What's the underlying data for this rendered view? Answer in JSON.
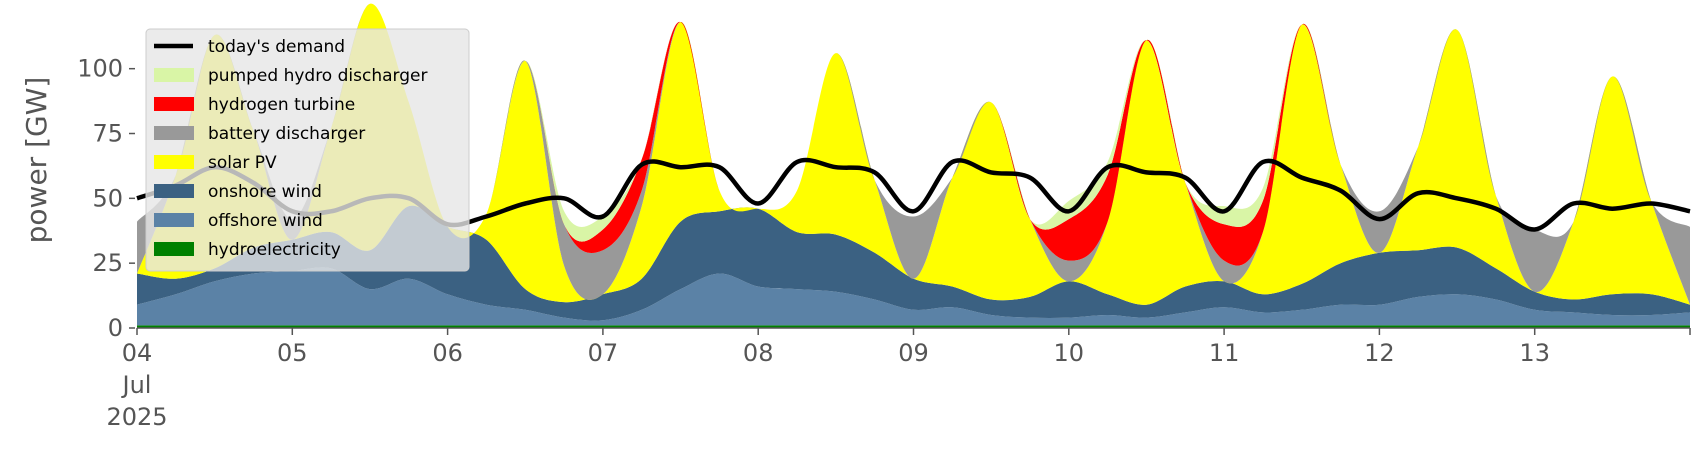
{
  "chart_data": {
    "type": "area",
    "ylabel": "power [GW]",
    "ylim": [
      0,
      118
    ],
    "yticks": [
      0,
      25,
      50,
      75,
      100
    ],
    "xlim": [
      0,
      10
    ],
    "xticks": [
      {
        "pos": 0,
        "label": "04\nJul\n2025"
      },
      {
        "pos": 1,
        "label": "05"
      },
      {
        "pos": 2,
        "label": "06"
      },
      {
        "pos": 3,
        "label": "07"
      },
      {
        "pos": 4,
        "label": "08"
      },
      {
        "pos": 5,
        "label": "09"
      },
      {
        "pos": 6,
        "label": "10"
      },
      {
        "pos": 7,
        "label": "11"
      },
      {
        "pos": 8,
        "label": "12"
      },
      {
        "pos": 9,
        "label": "13"
      },
      {
        "pos": 10,
        "label": ""
      }
    ],
    "grid": false,
    "legend_placement": "upper-left",
    "legend": [
      {
        "name": "today's demand",
        "kind": "line",
        "color": "#000000"
      },
      {
        "name": "pumped hydro discharger",
        "kind": "patch",
        "color": "#d9f5a6"
      },
      {
        "name": "hydrogen turbine",
        "kind": "patch",
        "color": "#ff0000"
      },
      {
        "name": "battery discharger",
        "kind": "patch",
        "color": "#999999"
      },
      {
        "name": "solar PV",
        "kind": "patch",
        "color": "#ffff00"
      },
      {
        "name": "onshore wind",
        "kind": "patch",
        "color": "#3b6182"
      },
      {
        "name": "offshore wind",
        "kind": "patch",
        "color": "#5b82a6"
      },
      {
        "name": "hydroelectricity",
        "kind": "patch",
        "color": "#008000"
      }
    ],
    "x_days": [
      0,
      0.25,
      0.5,
      0.75,
      1,
      1.25,
      1.5,
      1.75,
      2,
      2.25,
      2.5,
      2.75,
      3,
      3.25,
      3.5,
      3.75,
      4,
      4.25,
      4.5,
      4.75,
      5,
      5.25,
      5.5,
      5.75,
      6,
      6.25,
      6.5,
      6.75,
      7,
      7.25,
      7.5,
      7.75,
      8,
      8.25,
      8.5,
      8.75,
      9,
      9.25,
      9.5,
      9.75,
      10
    ],
    "stack_order": [
      "hydroelectricity",
      "offshore wind",
      "onshore wind",
      "solar PV",
      "battery discharger",
      "hydrogen turbine",
      "pumped hydro discharger"
    ],
    "series": [
      {
        "name": "hydroelectricity",
        "color": "#008000",
        "values": [
          1,
          1,
          1,
          1,
          1,
          1,
          1,
          1,
          1,
          1,
          1,
          1,
          1,
          1,
          1,
          1,
          1,
          1,
          1,
          1,
          1,
          1,
          1,
          1,
          1,
          1,
          1,
          1,
          1,
          1,
          1,
          1,
          1,
          1,
          1,
          1,
          1,
          1,
          1,
          1,
          1
        ]
      },
      {
        "name": "offshore wind",
        "color": "#5b82a6",
        "values": [
          8,
          12,
          17,
          20,
          21,
          22,
          14,
          18,
          12,
          8,
          6,
          3,
          2,
          6,
          14,
          20,
          15,
          14,
          13,
          10,
          6,
          7,
          4,
          3,
          3,
          4,
          3,
          5,
          7,
          5,
          6,
          8,
          8,
          11,
          12,
          10,
          6,
          5,
          4,
          4,
          5
        ]
      },
      {
        "name": "onshore wind",
        "color": "#3b6182",
        "values": [
          12,
          6,
          5,
          10,
          12,
          14,
          15,
          28,
          26,
          25,
          8,
          6,
          10,
          12,
          26,
          24,
          30,
          22,
          22,
          18,
          12,
          8,
          6,
          8,
          14,
          8,
          5,
          10,
          10,
          7,
          10,
          16,
          20,
          18,
          18,
          12,
          7,
          5,
          8,
          8,
          3
        ]
      },
      {
        "name": "solar PV",
        "color": "#ffff00",
        "values": [
          0,
          40,
          90,
          45,
          0,
          40,
          95,
          40,
          0,
          10,
          88,
          14,
          0,
          28,
          77,
          8,
          0,
          16,
          70,
          28,
          0,
          42,
          76,
          30,
          0,
          28,
          102,
          40,
          0,
          24,
          100,
          38,
          0,
          40,
          84,
          28,
          0,
          30,
          84,
          36,
          0
        ]
      },
      {
        "name": "battery discharger",
        "color": "#999999",
        "values": [
          20,
          0,
          0,
          0,
          8,
          0,
          0,
          0,
          0,
          0,
          0,
          16,
          17,
          6,
          0,
          0,
          0,
          0,
          0,
          0,
          24,
          0,
          0,
          0,
          8,
          0,
          0,
          0,
          8,
          0,
          0,
          0,
          16,
          0,
          0,
          0,
          24,
          0,
          0,
          0,
          30
        ]
      },
      {
        "name": "hydrogen turbine",
        "color": "#ff0000",
        "values": [
          0,
          0,
          0,
          0,
          0,
          0,
          0,
          0,
          0,
          0,
          0,
          0,
          8,
          12,
          0,
          0,
          0,
          0,
          0,
          0,
          0,
          0,
          0,
          0,
          16,
          18,
          0,
          0,
          14,
          12,
          0,
          0,
          0,
          0,
          0,
          0,
          0,
          0,
          0,
          0,
          0
        ]
      },
      {
        "name": "pumped hydro discharger",
        "color": "#d9f5a6",
        "values": [
          0,
          0,
          0,
          0,
          0,
          0,
          0,
          0,
          0,
          0,
          0,
          5,
          5,
          0,
          0,
          0,
          0,
          0,
          0,
          0,
          0,
          0,
          0,
          0,
          7,
          5,
          0,
          0,
          7,
          5,
          0,
          0,
          0,
          0,
          0,
          0,
          0,
          0,
          0,
          0,
          0
        ]
      }
    ],
    "demand": {
      "name": "today's demand",
      "color": "#000000",
      "values": [
        50,
        55,
        62,
        56,
        45,
        45,
        50,
        50,
        40,
        43,
        48,
        50,
        43,
        63,
        62,
        62,
        48,
        64,
        62,
        60,
        45,
        64,
        60,
        58,
        45,
        62,
        60,
        58,
        45,
        64,
        58,
        53,
        42,
        52,
        50,
        46,
        38,
        48,
        46,
        48,
        45
      ]
    }
  }
}
